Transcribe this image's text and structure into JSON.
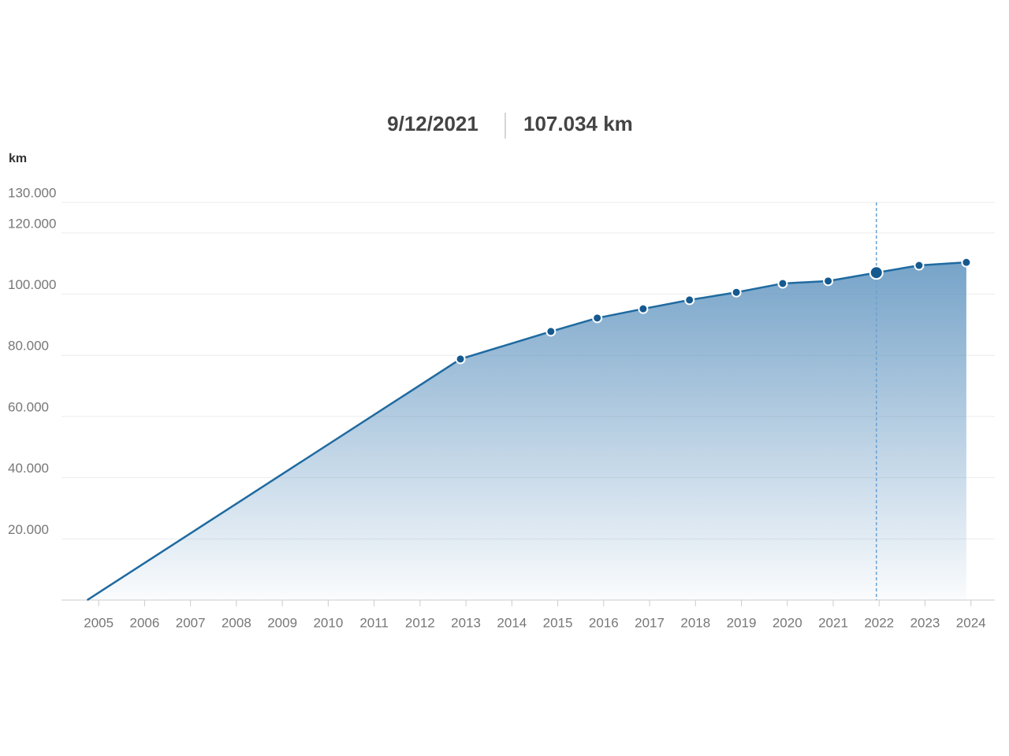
{
  "chart_data": {
    "type": "area",
    "y_label": "km",
    "tooltip": {
      "date": "9/12/2021",
      "value": 107034,
      "label": "107.034 km"
    },
    "x": [
      2004.75,
      2012.88,
      2014.85,
      2015.86,
      2016.86,
      2017.87,
      2018.89,
      2019.9,
      2020.89,
      2021.94,
      2022.87,
      2023.9
    ],
    "series": [
      {
        "color": "#1f6aa0",
        "values": [
          0,
          78800,
          87800,
          92200,
          95200,
          98100,
          100600,
          103500,
          104300,
          107034,
          109400,
          110400
        ]
      }
    ],
    "xlim": [
      2004.19,
      2024.52
    ],
    "xticks": [
      2005,
      2006,
      2007,
      2008,
      2009,
      2010,
      2011,
      2012,
      2013,
      2014,
      2015,
      2016,
      2017,
      2018,
      2019,
      2020,
      2021,
      2022,
      2023,
      2024
    ],
    "ylim": [
      0,
      130000
    ],
    "yticks": [
      {
        "value": 20000,
        "label": "20.000"
      },
      {
        "value": 40000,
        "label": "40.000"
      },
      {
        "value": 60000,
        "label": "60.000"
      },
      {
        "value": 80000,
        "label": "80.000"
      },
      {
        "value": 100000,
        "label": "100.000"
      },
      {
        "value": 120000,
        "label": "120.000"
      },
      {
        "value": 130000,
        "label": "130.000"
      }
    ],
    "grid": true
  }
}
